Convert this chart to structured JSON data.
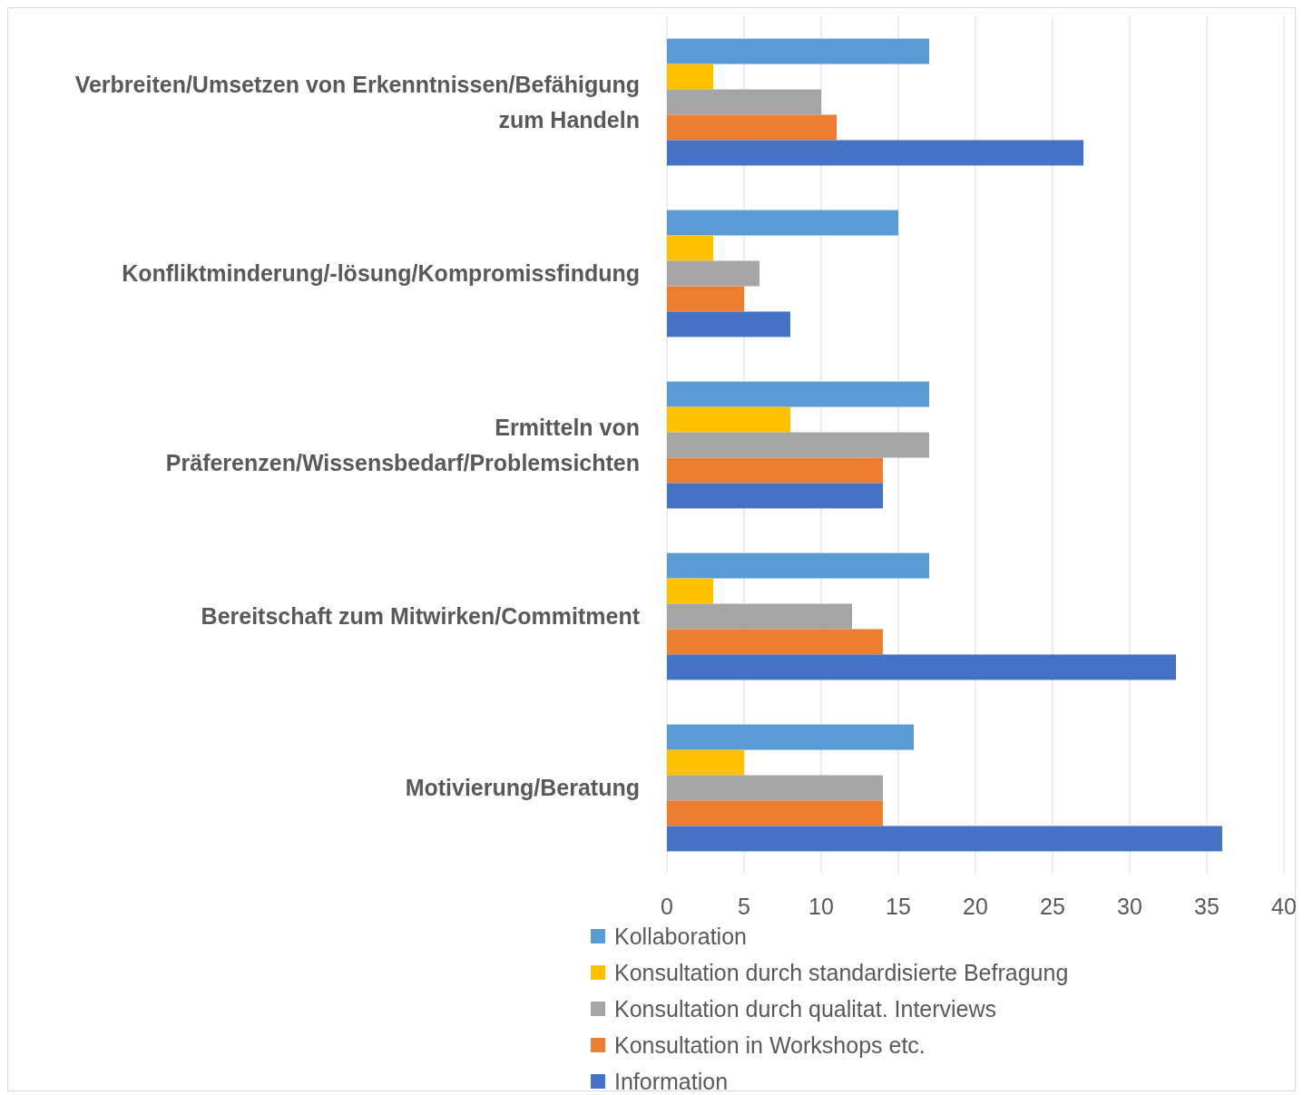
{
  "chart_data": {
    "type": "bar",
    "orientation": "horizontal",
    "categories": [
      "Verbreiten/Umsetzen von Erkenntnissen/Befähigung zum Handeln",
      "Konfliktminderung/-lösung/Kompromissfindung",
      "Ermitteln von Präferenzen/Wissensbedarf/Problemsichten",
      "Bereitschaft zum Mitwirken/Commitment",
      "Motivierung/Beratung"
    ],
    "series": [
      {
        "name": "Kollaboration",
        "color": "#5b9bd5",
        "values": [
          17,
          15,
          17,
          17,
          16
        ]
      },
      {
        "name": "Konsultation durch standardisierte Befragung",
        "color": "#ffc000",
        "values": [
          3,
          3,
          8,
          3,
          5
        ]
      },
      {
        "name": "Konsultation durch qualitat. Interviews",
        "color": "#a5a5a5",
        "values": [
          10,
          6,
          17,
          12,
          14
        ]
      },
      {
        "name": "Konsultation in Workshops etc.",
        "color": "#ed7d31",
        "values": [
          11,
          5,
          14,
          14,
          14
        ]
      },
      {
        "name": "Information",
        "color": "#4472c4",
        "values": [
          27,
          8,
          14,
          33,
          36
        ]
      }
    ],
    "xlim": [
      0,
      40
    ],
    "xticks": [
      0,
      5,
      10,
      15,
      20,
      25,
      30,
      35,
      40
    ],
    "grid": "x",
    "legend": "bottom"
  }
}
